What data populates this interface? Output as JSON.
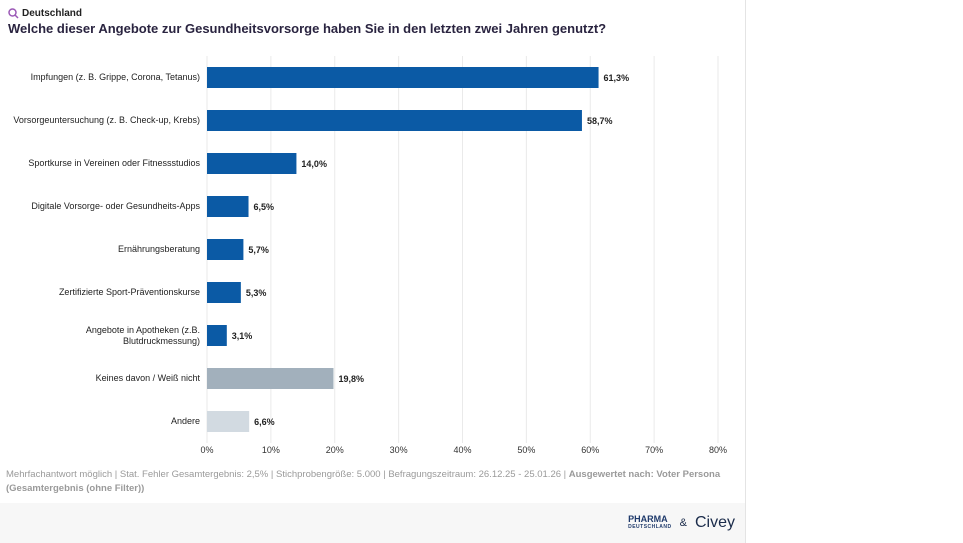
{
  "header": {
    "region": "Deutschland"
  },
  "chart_data": {
    "type": "bar",
    "orientation": "horizontal",
    "title": "Welche dieser Angebote zur Gesundheitsvorsorge haben Sie in den letzten zwei Jahren genutzt?",
    "categories": [
      "Impfungen (z. B. Grippe, Corona, Tetanus)",
      "Vorsorgeuntersuchung (z. B. Check-up, Krebs)",
      "Sportkurse in Vereinen oder Fitnessstudios",
      "Digitale Vorsorge- oder Gesundheits-Apps",
      "Ernährungsberatung",
      "Zertifizierte Sport-Präventionskurse",
      "Angebote in Apotheken (z.B. Blutdruckmessung)",
      "Keines davon / Weiß nicht",
      "Andere"
    ],
    "values": [
      61.3,
      58.7,
      14.0,
      6.5,
      5.7,
      5.3,
      3.1,
      19.8,
      6.6
    ],
    "value_labels": [
      "61,3%",
      "58,7%",
      "14,0%",
      "6,5%",
      "5,7%",
      "5,3%",
      "3,1%",
      "19,8%",
      "6,6%"
    ],
    "colors": [
      "#0b5aa5",
      "#0b5aa5",
      "#0b5aa5",
      "#0b5aa5",
      "#0b5aa5",
      "#0b5aa5",
      "#0b5aa5",
      "#a2b0bc",
      "#d2dae1"
    ],
    "xlim": [
      0,
      80
    ],
    "xticks": [
      {
        "value": 0,
        "label": "0%"
      },
      {
        "value": 10,
        "label": "10%"
      },
      {
        "value": 20,
        "label": "20%"
      },
      {
        "value": 30,
        "label": "30%"
      },
      {
        "value": 40,
        "label": "40%"
      },
      {
        "value": 50,
        "label": "50%"
      },
      {
        "value": 60,
        "label": "60%"
      },
      {
        "value": 70,
        "label": "70%"
      },
      {
        "value": 80,
        "label": "80%"
      }
    ],
    "grid": true
  },
  "footer": {
    "note": "Mehrfachantwort möglich | Stat. Fehler Gesamtergebnis: 2,5% | Stichprobengröße: 5.000 | Befragungszeitraum: 26.12.25 - 25.01.26 |",
    "evaluated": "Ausgewertet nach: Voter Persona (Gesamtergebnis (ohne Filter))"
  },
  "branding": {
    "pharma": "PHARMA",
    "pharma_sub": "DEUTSCHLAND",
    "amp": "&",
    "civey": "Civey"
  }
}
